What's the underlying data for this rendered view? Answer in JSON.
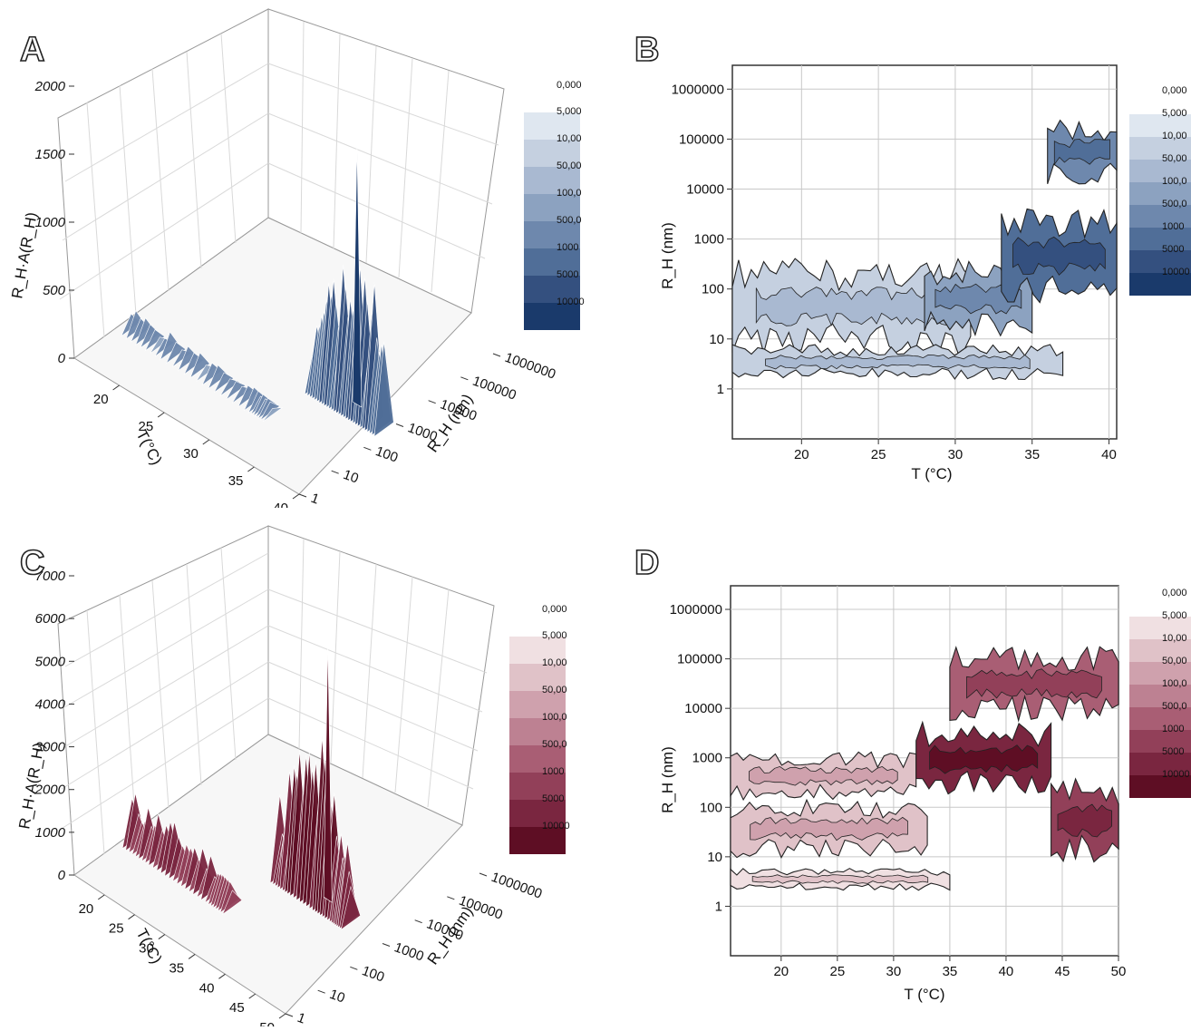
{
  "panels": {
    "A": {
      "letter": "A",
      "type": "3d-surface",
      "z_title": "R_H·A(R_H)",
      "z_ticks": [
        "0",
        "500",
        "1000",
        "1500",
        "2000"
      ],
      "t_title": "T(°C)",
      "t_ticks": [
        "20",
        "25",
        "30",
        "35",
        "40"
      ],
      "r_title": "R_H (nm)",
      "r_ticks": [
        "1",
        "10",
        "100",
        "1000",
        "10000",
        "100000",
        "1000000"
      ]
    },
    "B": {
      "letter": "B",
      "type": "contour",
      "xlabel": "T (°C)",
      "ylabel": "R_H (nm)",
      "x_ticks": [
        "20",
        "25",
        "30",
        "35",
        "40"
      ],
      "y_ticks": [
        "1",
        "10",
        "100",
        "1000",
        "10000",
        "100000",
        "1000000"
      ],
      "xlim": [
        15.5,
        40.5
      ],
      "ylim": [
        0.1,
        3000000
      ]
    },
    "C": {
      "letter": "C",
      "type": "3d-surface",
      "z_title": "R_H·A(R_H)",
      "z_ticks": [
        "0",
        "1000",
        "2000",
        "3000",
        "4000",
        "5000",
        "6000",
        "7000"
      ],
      "t_title": "T(°C)",
      "t_ticks": [
        "20",
        "25",
        "30",
        "35",
        "40",
        "45",
        "50"
      ],
      "r_title": "R_H (nm)",
      "r_ticks": [
        "1",
        "10",
        "100",
        "1000",
        "10000",
        "100000",
        "1000000"
      ]
    },
    "D": {
      "letter": "D",
      "type": "contour",
      "xlabel": "T (°C)",
      "ylabel": "R_H (nm)",
      "x_ticks": [
        "20",
        "25",
        "30",
        "35",
        "40",
        "45",
        "50"
      ],
      "y_ticks": [
        "1",
        "10",
        "100",
        "1000",
        "10000",
        "100000",
        "1000000"
      ],
      "xlim": [
        15.5,
        50
      ],
      "ylim": [
        0.1,
        3000000
      ]
    }
  },
  "legends": {
    "blue": {
      "top": "0,000",
      "levels": [
        "5,000",
        "10,00",
        "50,00",
        "100,0",
        "500,0",
        "1000",
        "5000",
        "10000"
      ],
      "colors": [
        "#dfe7f0",
        "#c5d0e0",
        "#a9b9d1",
        "#8ca2c0",
        "#6e88ad",
        "#506e98",
        "#34507f",
        "#1a3a6b"
      ]
    },
    "blue_b": {
      "top": "0,000",
      "levels": [
        "5,000",
        "10,00",
        "50,00",
        "100,0",
        "500,0",
        "1000",
        "5000",
        "10000"
      ],
      "colors": [
        "#dfe7f0",
        "#c5d0e0",
        "#a9b9d1",
        "#8ca2c0",
        "#6e88ad",
        "#506e98",
        "#34507f",
        "#1a3a6b"
      ]
    },
    "red": {
      "top": "0,000",
      "levels": [
        "5,000",
        "10,00",
        "50,00",
        "100,0",
        "500,0",
        "1000",
        "5000",
        "10000"
      ],
      "colors": [
        "#f0e0e2",
        "#e0c2c8",
        "#cfa1ad",
        "#bd8192",
        "#a95e74",
        "#924059",
        "#7a2640",
        "#5e0e24"
      ]
    },
    "red_d": {
      "top": "0,000",
      "levels": [
        "5,000",
        "10,00",
        "50,00",
        "100,0",
        "500,0",
        "1000",
        "5000",
        "10000"
      ],
      "colors": [
        "#f0e0e2",
        "#e0c2c8",
        "#cfa1ad",
        "#bd8192",
        "#a95e74",
        "#924059",
        "#7a2640",
        "#5e0e24"
      ]
    }
  },
  "chart_data": [
    {
      "panel": "A",
      "type": "3d-surface",
      "x_label": "T(°C)",
      "y_label": "R_H (nm)",
      "z_label": "R_H·A(R_H)",
      "x_range": [
        15,
        40
      ],
      "y_range": [
        1,
        1000000
      ],
      "z_range": [
        0,
        2000
      ],
      "ridges": [
        {
          "R_H": 30,
          "T": [
            16,
            20,
            25,
            30,
            32
          ],
          "z": [
            120,
            110,
            100,
            90,
            60
          ]
        },
        {
          "R_H": 500,
          "T": [
            32,
            34,
            36,
            38,
            40
          ],
          "z": [
            300,
            700,
            900,
            800,
            700
          ]
        }
      ],
      "peak": {
        "T": 36,
        "R_H": 800,
        "z": 1900
      }
    },
    {
      "panel": "B",
      "type": "contour",
      "x_label": "T (°C)",
      "y_label": "R_H (nm)",
      "x_range": [
        15.5,
        40.5
      ],
      "y_scale": "log",
      "regions": [
        {
          "T": [
            15.5,
            31
          ],
          "R_H": [
            10,
            200
          ],
          "level": "10,00"
        },
        {
          "T": [
            28,
            35
          ],
          "R_H": [
            20,
            200
          ],
          "level": "100,0"
        },
        {
          "T": [
            33,
            40.5
          ],
          "R_H": [
            100,
            2000
          ],
          "level": "1000"
        },
        {
          "T": [
            36,
            40.5
          ],
          "R_H": [
            20000,
            150000
          ],
          "level": "500,0"
        },
        {
          "T": [
            15.5,
            37
          ],
          "R_H": [
            2,
            6
          ],
          "level": "10,00"
        }
      ]
    },
    {
      "panel": "C",
      "type": "3d-surface",
      "x_label": "T(°C)",
      "y_label": "R_H (nm)",
      "z_label": "R_H·A(R_H)",
      "x_range": [
        15,
        50
      ],
      "y_range": [
        1,
        1000000
      ],
      "z_range": [
        0,
        7000
      ],
      "ridges": [
        {
          "R_H": 40,
          "T": [
            16,
            20,
            25,
            30,
            33
          ],
          "z": [
            900,
            850,
            800,
            700,
            400
          ]
        },
        {
          "R_H": 1000,
          "T": [
            33,
            36,
            40,
            43,
            45
          ],
          "z": [
            1500,
            2500,
            3000,
            2000,
            1000
          ]
        }
      ],
      "peak": {
        "T": 40,
        "R_H": 1500,
        "z": 6000
      }
    },
    {
      "panel": "D",
      "type": "contour",
      "x_label": "T (°C)",
      "y_label": "R_H (nm)",
      "x_range": [
        15.5,
        50
      ],
      "y_scale": "log",
      "regions": [
        {
          "T": [
            15.5,
            33
          ],
          "R_H": [
            15,
            90
          ],
          "level": "10,00"
        },
        {
          "T": [
            15.5,
            32
          ],
          "R_H": [
            200,
            900
          ],
          "level": "10,00"
        },
        {
          "T": [
            32,
            44
          ],
          "R_H": [
            300,
            3000
          ],
          "level": "5000"
        },
        {
          "T": [
            35,
            50
          ],
          "R_H": [
            10000,
            100000
          ],
          "level": "500,0"
        },
        {
          "T": [
            44,
            50
          ],
          "R_H": [
            15,
            200
          ],
          "level": "1000"
        },
        {
          "T": [
            15.5,
            35
          ],
          "R_H": [
            2.5,
            5
          ],
          "level": "5,000"
        }
      ]
    }
  ]
}
